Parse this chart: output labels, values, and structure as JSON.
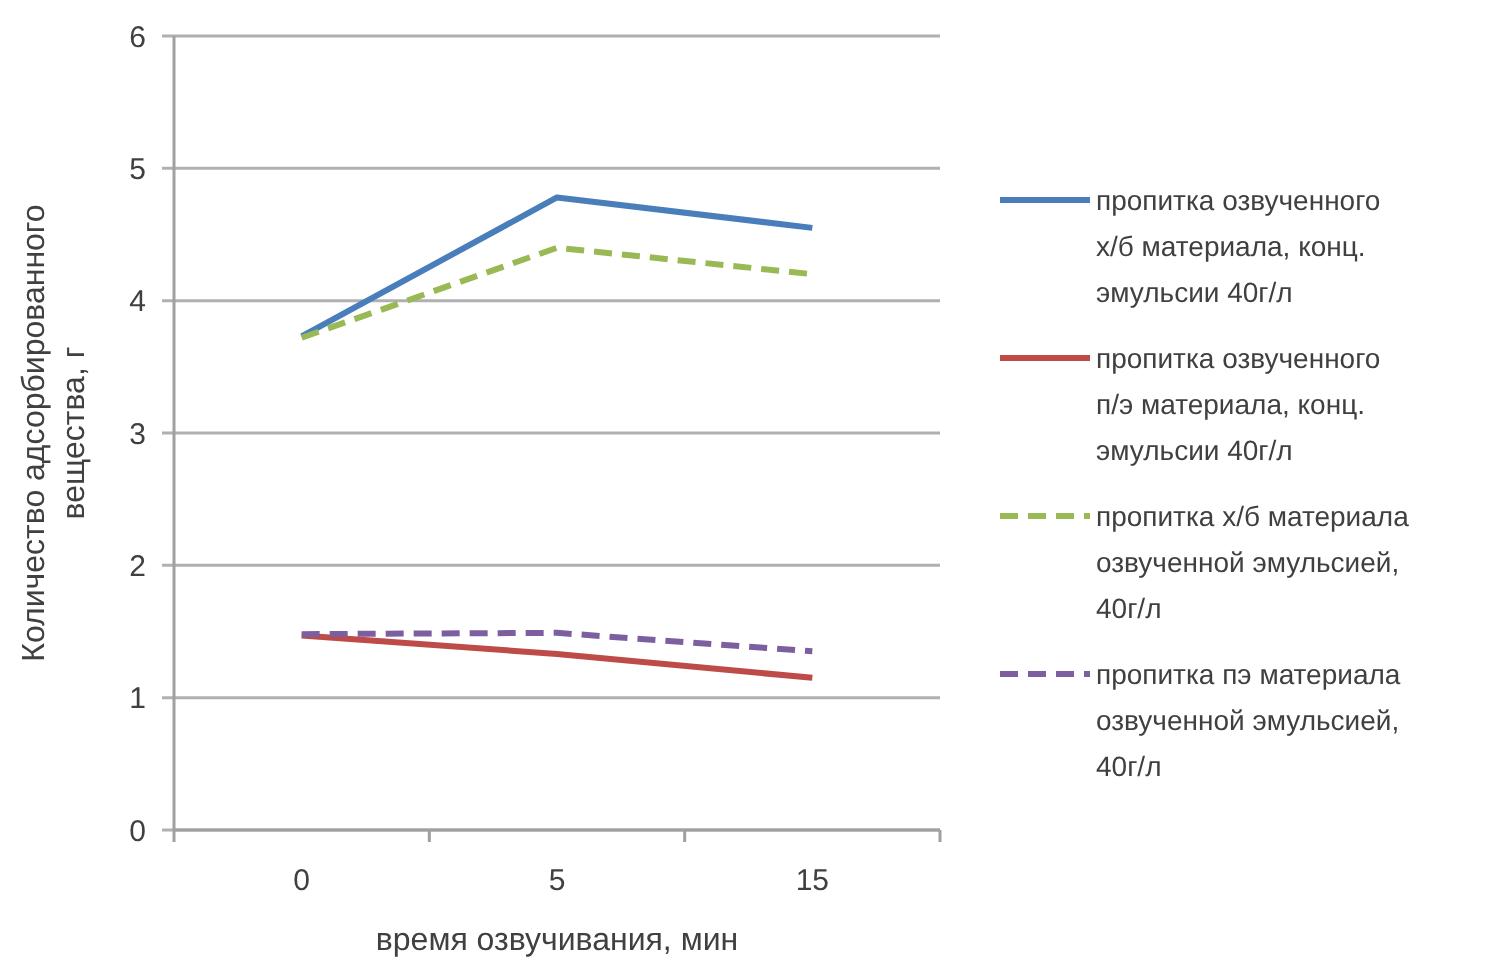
{
  "chart_data": {
    "type": "line",
    "xlabel": "время озвучивания,  мин",
    "ylabel": "Количество адсорбированного вещества, г",
    "categories": [
      "0",
      "5",
      "15"
    ],
    "ylim": [
      0,
      6
    ],
    "yticks": [
      0,
      1,
      2,
      3,
      4,
      5,
      6
    ],
    "grid": "y",
    "legend": "right",
    "series": [
      {
        "name": "пропитка озвученного х/б материала,  конц. эмульсии 40г/л",
        "color": "#4a7ebb",
        "line_style": "solid",
        "values": [
          3.73,
          4.78,
          4.55
        ]
      },
      {
        "name": "пропитка озвученного п/э материала, конц. эмульсии 40г/л",
        "color": "#be4b48",
        "line_style": "solid",
        "values": [
          1.47,
          1.33,
          1.15
        ]
      },
      {
        "name": "пропитка х/б материала озвученной эмульсией, 40г/л",
        "color": "#98b954",
        "line_style": "dashed",
        "values": [
          3.72,
          4.4,
          4.2
        ]
      },
      {
        "name": "пропитка пэ материала озвученной эмульсией, 40г/л",
        "color": "#7d5fa0",
        "line_style": "dashed",
        "values": [
          1.48,
          1.49,
          1.35
        ]
      }
    ]
  }
}
